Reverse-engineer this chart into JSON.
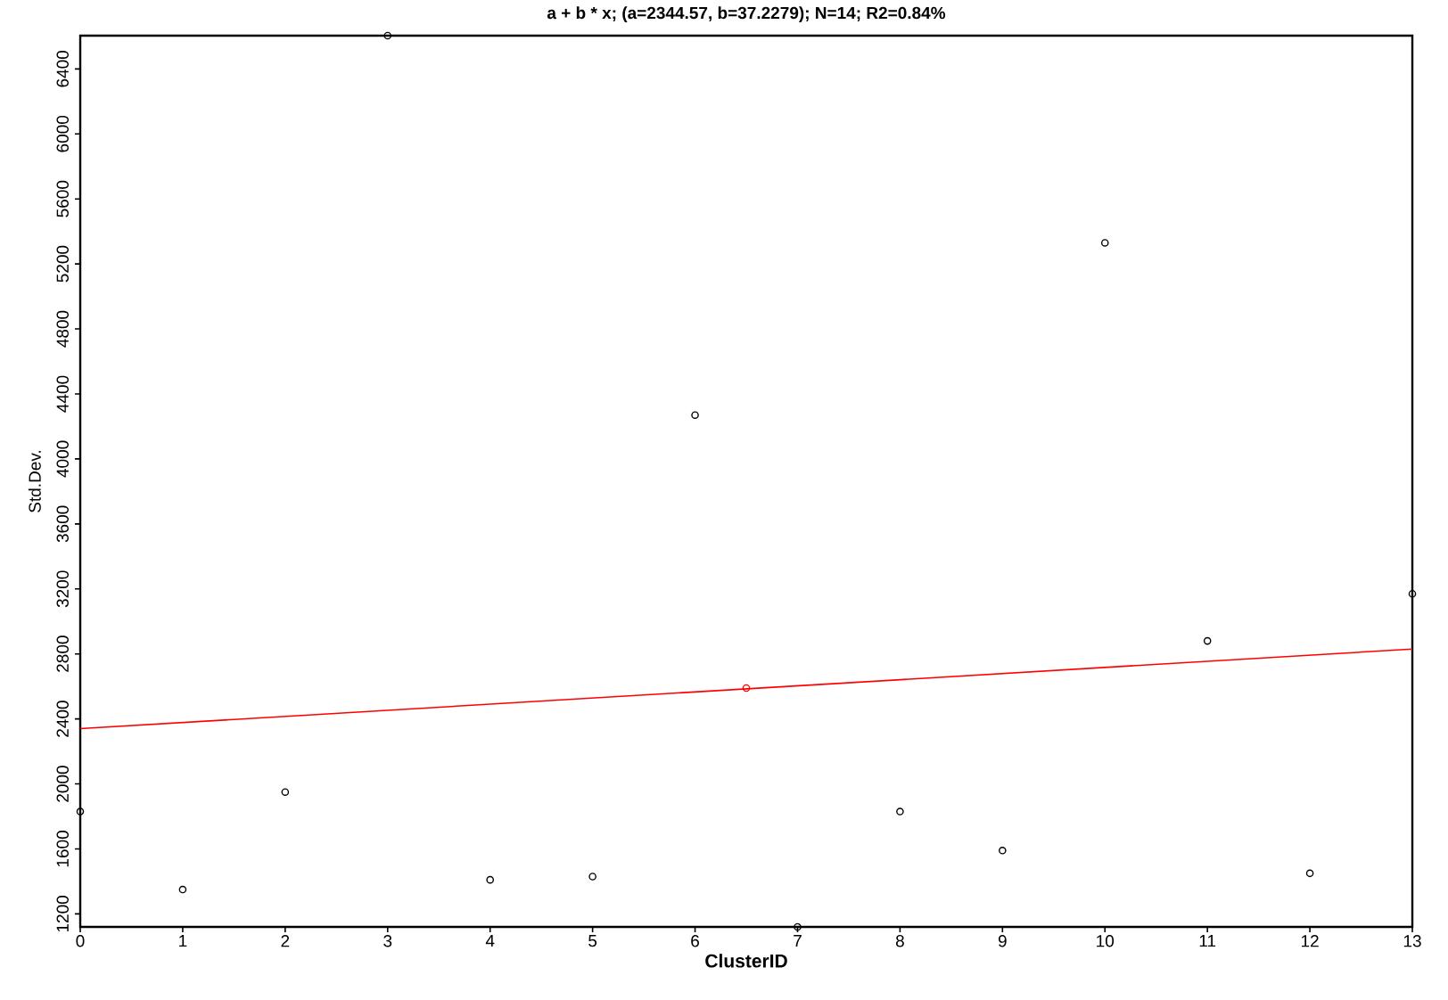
{
  "chart_data": {
    "type": "scatter",
    "title": "a + b * x; (a=2344.57, b=37.2279); N=14; R2=0.84%",
    "xlabel": "ClusterID",
    "ylabel": "Std.Dev.",
    "xlim": [
      0,
      13
    ],
    "xticks": [
      0,
      1,
      2,
      3,
      4,
      5,
      6,
      7,
      8,
      9,
      10,
      11,
      12,
      13
    ],
    "ylim": [
      1120,
      6605
    ],
    "yticks": [
      1200,
      1600,
      2000,
      2400,
      2800,
      3200,
      3600,
      4000,
      4400,
      4800,
      5200,
      5600,
      6000,
      6400
    ],
    "grid": false,
    "marker": "circle",
    "series": [
      {
        "color": "#000000",
        "x": [
          0,
          1,
          2,
          3,
          4,
          5,
          6,
          7,
          8,
          9,
          10,
          11,
          12,
          13
        ],
        "values": [
          1830,
          1350,
          1950,
          6605,
          1410,
          1430,
          4270,
          1120,
          1830,
          1590,
          5330,
          2880,
          1450,
          3170
        ]
      },
      {
        "type": "line",
        "color": "#ff0000",
        "marker": "none",
        "x": [
          0,
          13
        ],
        "values": [
          2340,
          2830
        ]
      },
      {
        "color": "#ff0000",
        "x": [
          6.5
        ],
        "values": [
          2590
        ]
      }
    ]
  }
}
